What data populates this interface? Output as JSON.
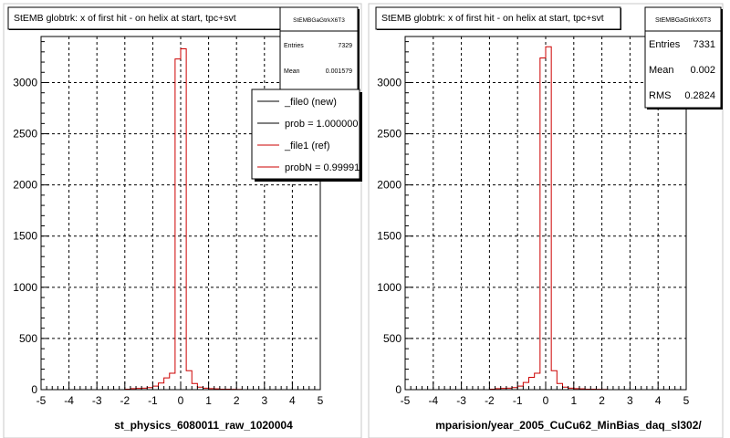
{
  "chart_data": [
    {
      "type": "histogram",
      "title": "StEMB globtrk: x of first hit - on helix at start, tpc+svt",
      "xlabel": "st_physics_6080011_raw_1020004",
      "ylabel": "",
      "xlim": [
        -5,
        5
      ],
      "ylim": [
        0,
        3450
      ],
      "x_ticks": [
        -5,
        -4,
        -3,
        -2,
        -1,
        0,
        1,
        2,
        3,
        4,
        5
      ],
      "y_ticks": [
        0,
        500,
        1000,
        1500,
        2000,
        2500,
        3000
      ],
      "grid": true,
      "stats": {
        "name": "StEMBGaGtrkX6T3",
        "rows": [
          {
            "label": "Entries",
            "value": "7329"
          },
          {
            "label": "Mean",
            "value": "0.001579"
          }
        ]
      },
      "legend": {
        "placement": "top-right",
        "entries": [
          {
            "label": "_file0 (new)",
            "color": "#000000"
          },
          {
            "label": "prob = 1.000000",
            "color": "#000000"
          },
          {
            "label": "_file1 (ref)",
            "color": "#cc0000"
          },
          {
            "label": "probN = 0.999916",
            "color": "#cc0000"
          }
        ]
      },
      "series": [
        {
          "color": "#cc0000",
          "bin_edges": [
            -5.0,
            -4.8,
            -4.6,
            -4.4,
            -4.2,
            -4.0,
            -3.8,
            -3.6,
            -3.4,
            -3.2,
            -3.0,
            -2.8,
            -2.6,
            -2.4,
            -2.2,
            -2.0,
            -1.8,
            -1.6,
            -1.4,
            -1.2,
            -1.0,
            -0.8,
            -0.6,
            -0.4,
            -0.2,
            0.0,
            0.2,
            0.4,
            0.6,
            0.8,
            1.0,
            1.2,
            1.4,
            1.6,
            1.8,
            2.0,
            2.2,
            2.4,
            2.6,
            2.8,
            3.0,
            3.2,
            3.4,
            3.6,
            3.8,
            4.0,
            4.2,
            4.4,
            4.6,
            4.8,
            5.0
          ],
          "values": [
            0,
            0,
            0,
            0,
            0,
            0,
            0,
            0,
            0,
            0,
            0,
            0,
            0,
            0,
            0,
            5,
            10,
            12,
            15,
            20,
            35,
            65,
            115,
            160,
            3230,
            3330,
            185,
            60,
            25,
            15,
            10,
            8,
            5,
            5,
            3,
            2,
            0,
            0,
            0,
            0,
            0,
            0,
            0,
            0,
            0,
            0,
            0,
            0,
            0,
            0
          ]
        }
      ]
    },
    {
      "type": "histogram",
      "title": "StEMB globtrk: x of first hit - on helix at start, tpc+svt",
      "xlabel": "mparision/year_2005_CuCu62_MinBias_daq_sl302/",
      "ylabel": "",
      "xlim": [
        -5,
        5
      ],
      "ylim": [
        0,
        3450
      ],
      "x_ticks": [
        -5,
        -4,
        -3,
        -2,
        -1,
        0,
        1,
        2,
        3,
        4,
        5
      ],
      "y_ticks": [
        0,
        500,
        1000,
        1500,
        2000,
        2500,
        3000
      ],
      "grid": true,
      "stats": {
        "name": "StEMBGaGtrkX6T3",
        "rows": [
          {
            "label": "Entries",
            "value": "7331"
          },
          {
            "label": "Mean",
            "value": "0.002"
          },
          {
            "label": "RMS",
            "value": "0.2824"
          }
        ]
      },
      "series": [
        {
          "color": "#cc0000",
          "bin_edges": [
            -5.0,
            -4.8,
            -4.6,
            -4.4,
            -4.2,
            -4.0,
            -3.8,
            -3.6,
            -3.4,
            -3.2,
            -3.0,
            -2.8,
            -2.6,
            -2.4,
            -2.2,
            -2.0,
            -1.8,
            -1.6,
            -1.4,
            -1.2,
            -1.0,
            -0.8,
            -0.6,
            -0.4,
            -0.2,
            0.0,
            0.2,
            0.4,
            0.6,
            0.8,
            1.0,
            1.2,
            1.4,
            1.6,
            1.8,
            2.0,
            2.2,
            2.4,
            2.6,
            2.8,
            3.0,
            3.2,
            3.4,
            3.6,
            3.8,
            4.0,
            4.2,
            4.4,
            4.6,
            4.8,
            5.0
          ],
          "values": [
            0,
            0,
            0,
            0,
            0,
            0,
            0,
            0,
            0,
            0,
            0,
            0,
            0,
            0,
            0,
            5,
            10,
            12,
            15,
            20,
            35,
            70,
            120,
            160,
            3240,
            3350,
            185,
            60,
            25,
            15,
            10,
            8,
            5,
            5,
            3,
            2,
            0,
            0,
            0,
            0,
            0,
            0,
            0,
            0,
            0,
            0,
            0,
            0,
            0,
            0
          ]
        }
      ]
    }
  ]
}
